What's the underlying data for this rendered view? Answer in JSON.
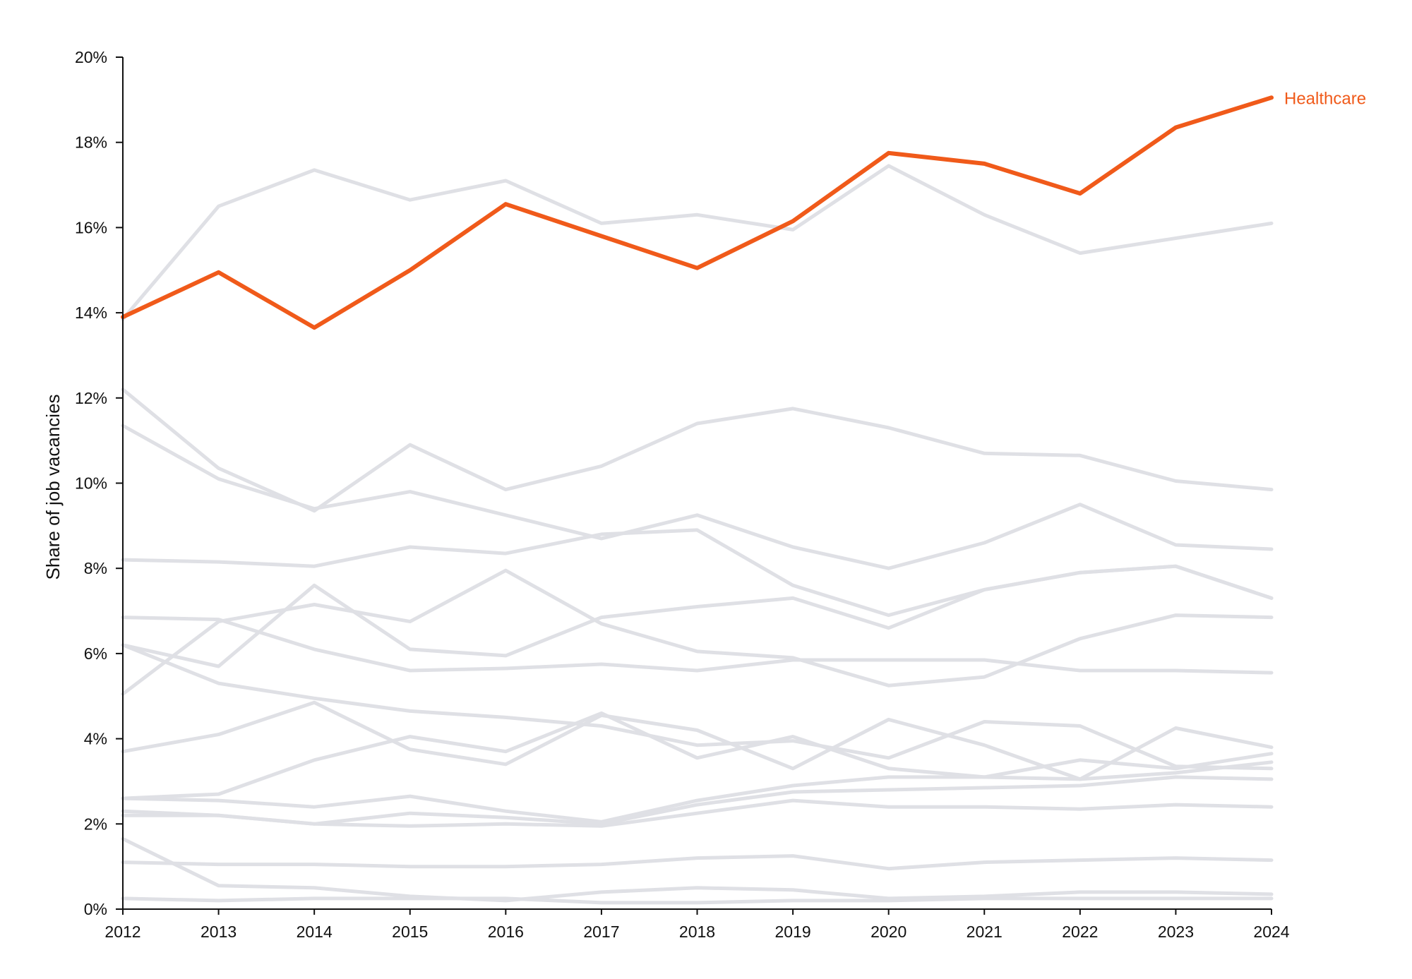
{
  "chart_data": {
    "type": "line",
    "x": [
      2012,
      2013,
      2014,
      2015,
      2016,
      2017,
      2018,
      2019,
      2020,
      2021,
      2022,
      2023,
      2024
    ],
    "ylabel": "Share of job vacancies",
    "xlabel": "",
    "ylim": [
      0,
      20
    ],
    "y_ticks": [
      0,
      2,
      4,
      6,
      8,
      10,
      12,
      14,
      16,
      18,
      20
    ],
    "y_tick_labels": [
      "0%",
      "2%",
      "4%",
      "6%",
      "8%",
      "10%",
      "12%",
      "14%",
      "16%",
      "18%",
      "20%"
    ],
    "x_tick_labels": [
      "2012",
      "2013",
      "2014",
      "2015",
      "2016",
      "2017",
      "2018",
      "2019",
      "2020",
      "2021",
      "2022",
      "2023",
      "2024"
    ],
    "grid": false,
    "colors": {
      "highlight": "#f05a1a",
      "background": "#dfe0e5",
      "axis": "#111111"
    },
    "highlight": {
      "name": "Healthcare",
      "values": [
        13.9,
        14.95,
        13.65,
        15.0,
        16.55,
        15.8,
        15.05,
        16.15,
        17.75,
        17.5,
        16.8,
        18.35,
        19.05
      ]
    },
    "series": [
      {
        "values": [
          13.85,
          16.5,
          17.35,
          16.65,
          17.1,
          16.1,
          16.3,
          15.95,
          17.45,
          16.3,
          15.4,
          15.75,
          16.1
        ]
      },
      {
        "values": [
          12.2,
          10.35,
          9.35,
          10.9,
          9.85,
          10.4,
          11.4,
          11.75,
          11.3,
          10.7,
          10.65,
          10.05,
          9.85
        ]
      },
      {
        "values": [
          11.35,
          10.1,
          9.4,
          9.8,
          9.25,
          8.7,
          9.25,
          8.5,
          8.0,
          8.6,
          9.5,
          8.55,
          8.45
        ]
      },
      {
        "values": [
          8.2,
          8.15,
          8.05,
          8.5,
          8.35,
          8.8,
          8.9,
          7.6,
          6.9,
          7.5,
          7.9,
          8.05,
          7.3
        ]
      },
      {
        "values": [
          6.85,
          6.8,
          6.1,
          5.6,
          5.65,
          5.75,
          5.6,
          5.85,
          5.85,
          5.85,
          5.6,
          5.6,
          5.55
        ]
      },
      {
        "values": [
          6.2,
          5.7,
          7.6,
          6.1,
          5.95,
          6.85,
          7.1,
          7.3,
          6.6,
          7.5,
          7.9,
          8.05,
          7.3
        ]
      },
      {
        "values": [
          5.05,
          6.75,
          7.15,
          6.75,
          7.95,
          6.7,
          6.05,
          5.9,
          5.25,
          5.45,
          6.35,
          6.9,
          6.85
        ]
      },
      {
        "values": [
          6.2,
          5.3,
          4.95,
          4.65,
          4.5,
          4.3,
          3.85,
          3.95,
          3.55,
          4.4,
          4.3,
          3.35,
          3.3
        ]
      },
      {
        "values": [
          3.7,
          4.1,
          4.85,
          3.75,
          3.4,
          4.55,
          4.2,
          3.3,
          4.45,
          3.85,
          3.05,
          4.25,
          3.8
        ]
      },
      {
        "values": [
          2.6,
          2.7,
          3.5,
          4.05,
          3.7,
          4.6,
          3.55,
          4.05,
          3.3,
          3.1,
          3.5,
          3.3,
          3.65
        ]
      },
      {
        "values": [
          2.6,
          2.55,
          2.4,
          2.65,
          2.3,
          2.05,
          2.55,
          2.9,
          3.1,
          3.1,
          3.05,
          3.2,
          3.45
        ]
      },
      {
        "values": [
          2.3,
          2.2,
          2.0,
          2.25,
          2.15,
          2.0,
          2.45,
          2.75,
          2.8,
          2.85,
          2.9,
          3.1,
          3.05
        ]
      },
      {
        "values": [
          2.2,
          2.2,
          2.0,
          1.95,
          2.0,
          1.95,
          2.25,
          2.55,
          2.4,
          2.4,
          2.35,
          2.45,
          2.4
        ]
      },
      {
        "values": [
          1.1,
          1.05,
          1.05,
          1.0,
          1.0,
          1.05,
          1.2,
          1.25,
          0.95,
          1.1,
          1.15,
          1.2,
          1.15
        ]
      },
      {
        "values": [
          1.65,
          0.55,
          0.5,
          0.3,
          0.2,
          0.4,
          0.5,
          0.45,
          0.25,
          0.3,
          0.4,
          0.4,
          0.35
        ]
      },
      {
        "values": [
          0.25,
          0.2,
          0.25,
          0.25,
          0.25,
          0.15,
          0.15,
          0.2,
          0.2,
          0.25,
          0.25,
          0.25,
          0.25
        ]
      }
    ]
  }
}
